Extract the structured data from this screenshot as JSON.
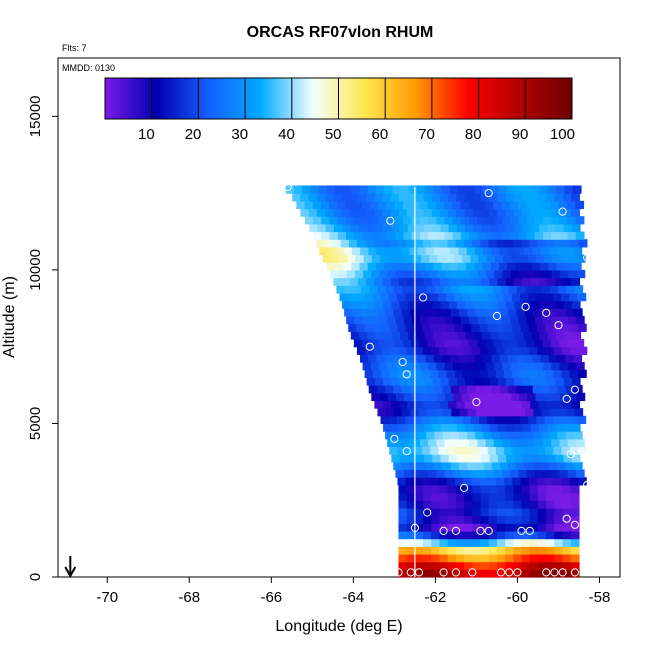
{
  "chart_data": {
    "type": "heatmap",
    "title": "ORCAS RF07vlon RHUM",
    "corner_note_top": "Flts: 7",
    "corner_note_box": "MMDD: 0130",
    "xlabel": "Longitude (deg E)",
    "ylabel": "Altitude (m)",
    "xlim": [
      -71.2,
      -57.5
    ],
    "ylim": [
      0,
      16900
    ],
    "x_ticks": [
      -70,
      -68,
      -66,
      -64,
      -62,
      -60,
      -58
    ],
    "y_ticks": [
      0,
      5000,
      10000,
      15000
    ],
    "colorbar": {
      "range": [
        0,
        100
      ],
      "ticks": [
        10,
        20,
        30,
        40,
        50,
        60,
        70,
        80,
        90,
        100
      ],
      "stops": [
        "#7a1be8",
        "#0000b0",
        "#1560ff",
        "#00aaff",
        "#f2ffff",
        "#ffe850",
        "#ff9900",
        "#ff0000",
        "#b00000",
        "#700000"
      ]
    },
    "grid_cell": {
      "dlon": 0.2,
      "dalt": 250
    },
    "vertical_line_lon": -62.5,
    "arrow_lon": -70.9,
    "field": {
      "east_edge_lon": -58.5,
      "west_edge": [
        [
          12700,
          -65.7
        ],
        [
          12400,
          -65.5
        ],
        [
          11900,
          -65.3
        ],
        [
          11200,
          -65.0
        ],
        [
          10500,
          -64.8
        ],
        [
          10000,
          -64.6
        ],
        [
          9000,
          -64.3
        ],
        [
          8000,
          -64.1
        ],
        [
          7000,
          -63.8
        ],
        [
          6000,
          -63.6
        ],
        [
          5000,
          -63.3
        ],
        [
          4000,
          -63.1
        ],
        [
          3000,
          -62.9
        ],
        [
          2000,
          -62.9
        ],
        [
          1500,
          -62.9
        ],
        [
          1000,
          -62.9
        ],
        [
          0,
          -62.9
        ]
      ],
      "profile": [
        [
          12700,
          30
        ],
        [
          12000,
          30
        ],
        [
          11500,
          32
        ],
        [
          11000,
          38
        ],
        [
          10500,
          48
        ],
        [
          10000,
          38
        ],
        [
          9500,
          30
        ],
        [
          9000,
          24
        ],
        [
          8500,
          18
        ],
        [
          8000,
          15
        ],
        [
          7500,
          13
        ],
        [
          7000,
          20
        ],
        [
          6500,
          24
        ],
        [
          6000,
          18
        ],
        [
          5500,
          12
        ],
        [
          5000,
          26
        ],
        [
          4500,
          38
        ],
        [
          4000,
          44
        ],
        [
          3500,
          30
        ],
        [
          3000,
          14
        ],
        [
          2500,
          12
        ],
        [
          2000,
          18
        ],
        [
          1700,
          9
        ],
        [
          1500,
          10
        ],
        [
          1200,
          30
        ],
        [
          900,
          56
        ],
        [
          600,
          68
        ],
        [
          300,
          82
        ],
        [
          0,
          88
        ]
      ]
    },
    "samples": [
      {
        "lon": -65.6,
        "alt": 12700
      },
      {
        "lon": -63.1,
        "alt": 11600
      },
      {
        "lon": -60.7,
        "alt": 12500
      },
      {
        "lon": -58.9,
        "alt": 11900
      },
      {
        "lon": -62.3,
        "alt": 9100
      },
      {
        "lon": -60.5,
        "alt": 8500
      },
      {
        "lon": -59.8,
        "alt": 8800
      },
      {
        "lon": -59.3,
        "alt": 8600
      },
      {
        "lon": -59.0,
        "alt": 8200
      },
      {
        "lon": -58.3,
        "alt": 10400
      },
      {
        "lon": -63.6,
        "alt": 7500
      },
      {
        "lon": -62.8,
        "alt": 7000
      },
      {
        "lon": -62.7,
        "alt": 6600
      },
      {
        "lon": -61.0,
        "alt": 5700
      },
      {
        "lon": -58.6,
        "alt": 6100
      },
      {
        "lon": -58.8,
        "alt": 5800
      },
      {
        "lon": -63.0,
        "alt": 4500
      },
      {
        "lon": -62.7,
        "alt": 4100
      },
      {
        "lon": -58.7,
        "alt": 4000
      },
      {
        "lon": -61.3,
        "alt": 2900
      },
      {
        "lon": -58.3,
        "alt": 3000
      },
      {
        "lon": -63.0,
        "alt": 2000
      },
      {
        "lon": -62.5,
        "alt": 1600
      },
      {
        "lon": -62.2,
        "alt": 2100
      },
      {
        "lon": -61.8,
        "alt": 1500
      },
      {
        "lon": -61.5,
        "alt": 1500
      },
      {
        "lon": -60.9,
        "alt": 1500
      },
      {
        "lon": -60.7,
        "alt": 1500
      },
      {
        "lon": -59.9,
        "alt": 1500
      },
      {
        "lon": -59.7,
        "alt": 1500
      },
      {
        "lon": -58.8,
        "alt": 1900
      },
      {
        "lon": -58.6,
        "alt": 1700
      },
      {
        "lon": -62.9,
        "alt": 150
      },
      {
        "lon": -62.6,
        "alt": 150
      },
      {
        "lon": -62.4,
        "alt": 150
      },
      {
        "lon": -61.8,
        "alt": 150
      },
      {
        "lon": -61.5,
        "alt": 150
      },
      {
        "lon": -61.1,
        "alt": 150
      },
      {
        "lon": -60.4,
        "alt": 150
      },
      {
        "lon": -60.2,
        "alt": 150
      },
      {
        "lon": -60.0,
        "alt": 150
      },
      {
        "lon": -59.3,
        "alt": 150
      },
      {
        "lon": -59.1,
        "alt": 150
      },
      {
        "lon": -58.9,
        "alt": 150
      },
      {
        "lon": -58.6,
        "alt": 150
      },
      {
        "lon": -58.2,
        "alt": 200
      },
      {
        "lon": -58.0,
        "alt": 300
      }
    ]
  }
}
